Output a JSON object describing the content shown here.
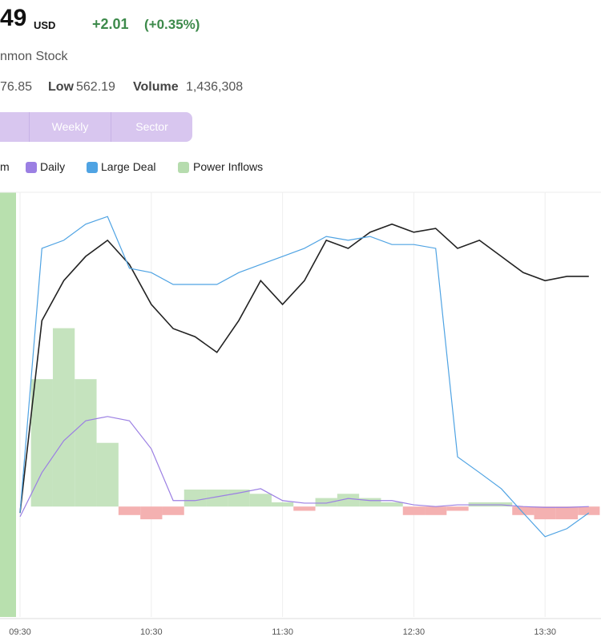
{
  "header": {
    "price": "49",
    "currency": "USD",
    "change": "+2.01",
    "change_pct": "(+0.35%)",
    "name": "nmon Stock"
  },
  "stats": {
    "high": "76.85",
    "low_label": "Low",
    "low": "562.19",
    "volume_label": "Volume",
    "volume": "1,436,308"
  },
  "tabs": [
    "Weekly",
    "Sector"
  ],
  "chart_data": {
    "type": "line",
    "categories": [
      "09:30",
      null,
      null,
      null,
      null,
      null,
      "10:30",
      null,
      null,
      null,
      null,
      null,
      "11:30",
      null,
      null,
      null,
      null,
      null,
      "12:30",
      null,
      null,
      null,
      null,
      null,
      "13:30",
      null,
      null
    ],
    "ylim": [
      0,
      100
    ],
    "y2lim": [
      -26,
      74
    ],
    "grid": true,
    "series": [
      {
        "name": "m",
        "color": "#222222",
        "values": [
          24.5,
          69.8,
          79.2,
          84.9,
          88.7,
          83.0,
          73.6,
          67.9,
          66.0,
          62.3,
          69.8,
          79.2,
          73.6,
          79.2,
          88.7,
          86.8,
          90.6,
          92.5,
          90.6,
          91.5,
          86.8,
          88.7,
          84.9,
          81.1,
          79.2,
          80.2,
          80.2
        ]
      },
      {
        "name": "Daily",
        "color": "#9b7fe3",
        "values": [
          23.6,
          34.0,
          41.5,
          46.2,
          47.2,
          46.2,
          39.6,
          27.4,
          27.4,
          28.3,
          29.2,
          30.2,
          27.4,
          26.8,
          26.8,
          27.9,
          27.4,
          27.4,
          26.4,
          26.0,
          26.4,
          26.4,
          26.4,
          26.0,
          25.8,
          25.8,
          26.0
        ]
      },
      {
        "name": "Large Deal",
        "color": "#4fa3e3",
        "values": [
          24.5,
          86.8,
          88.7,
          92.5,
          94.3,
          82.1,
          81.1,
          78.3,
          78.3,
          78.3,
          81.1,
          83.0,
          84.9,
          86.8,
          89.6,
          88.7,
          89.6,
          87.7,
          87.7,
          86.8,
          37.7,
          34.0,
          30.2,
          24.5,
          18.9,
          20.8,
          24.5
        ]
      },
      {
        "name": "Power Inflows",
        "color": "#b6dcae",
        "negative_color": "#f4b1b1",
        "axis": "y2",
        "values": [
          0,
          30,
          42,
          30,
          15,
          -2,
          -3,
          -2,
          4,
          4,
          4,
          3,
          1,
          -1,
          2,
          3,
          2,
          1,
          -2,
          -2,
          -1,
          1,
          1,
          -2,
          -3,
          -3,
          -2
        ]
      }
    ]
  }
}
